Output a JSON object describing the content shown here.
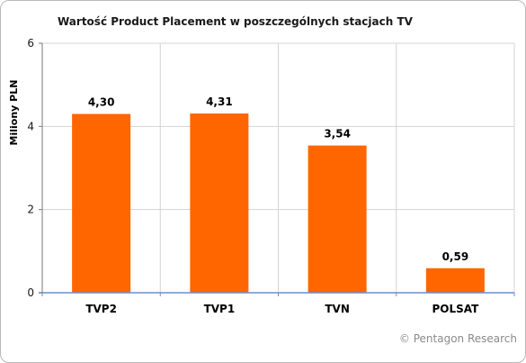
{
  "chart_data": {
    "type": "bar",
    "title": "Wartość Product Placement w poszczególnych stacjach TV",
    "xlabel": "",
    "ylabel": "Miliony PLN",
    "categories": [
      "TVP2",
      "TVP1",
      "TVN",
      "POLSAT"
    ],
    "values": [
      4.3,
      4.31,
      3.54,
      0.59
    ],
    "data_labels": [
      "4,30",
      "4,31",
      "3,54",
      "0,59"
    ],
    "ylim": [
      0,
      6
    ],
    "yticks": [
      0,
      2,
      4,
      6
    ],
    "ytick_labels": [
      "0",
      "2",
      "4",
      "6"
    ],
    "grid": true,
    "bar_color": "#ff6600"
  },
  "footer": {
    "copyright": "© Pentagon Research"
  }
}
